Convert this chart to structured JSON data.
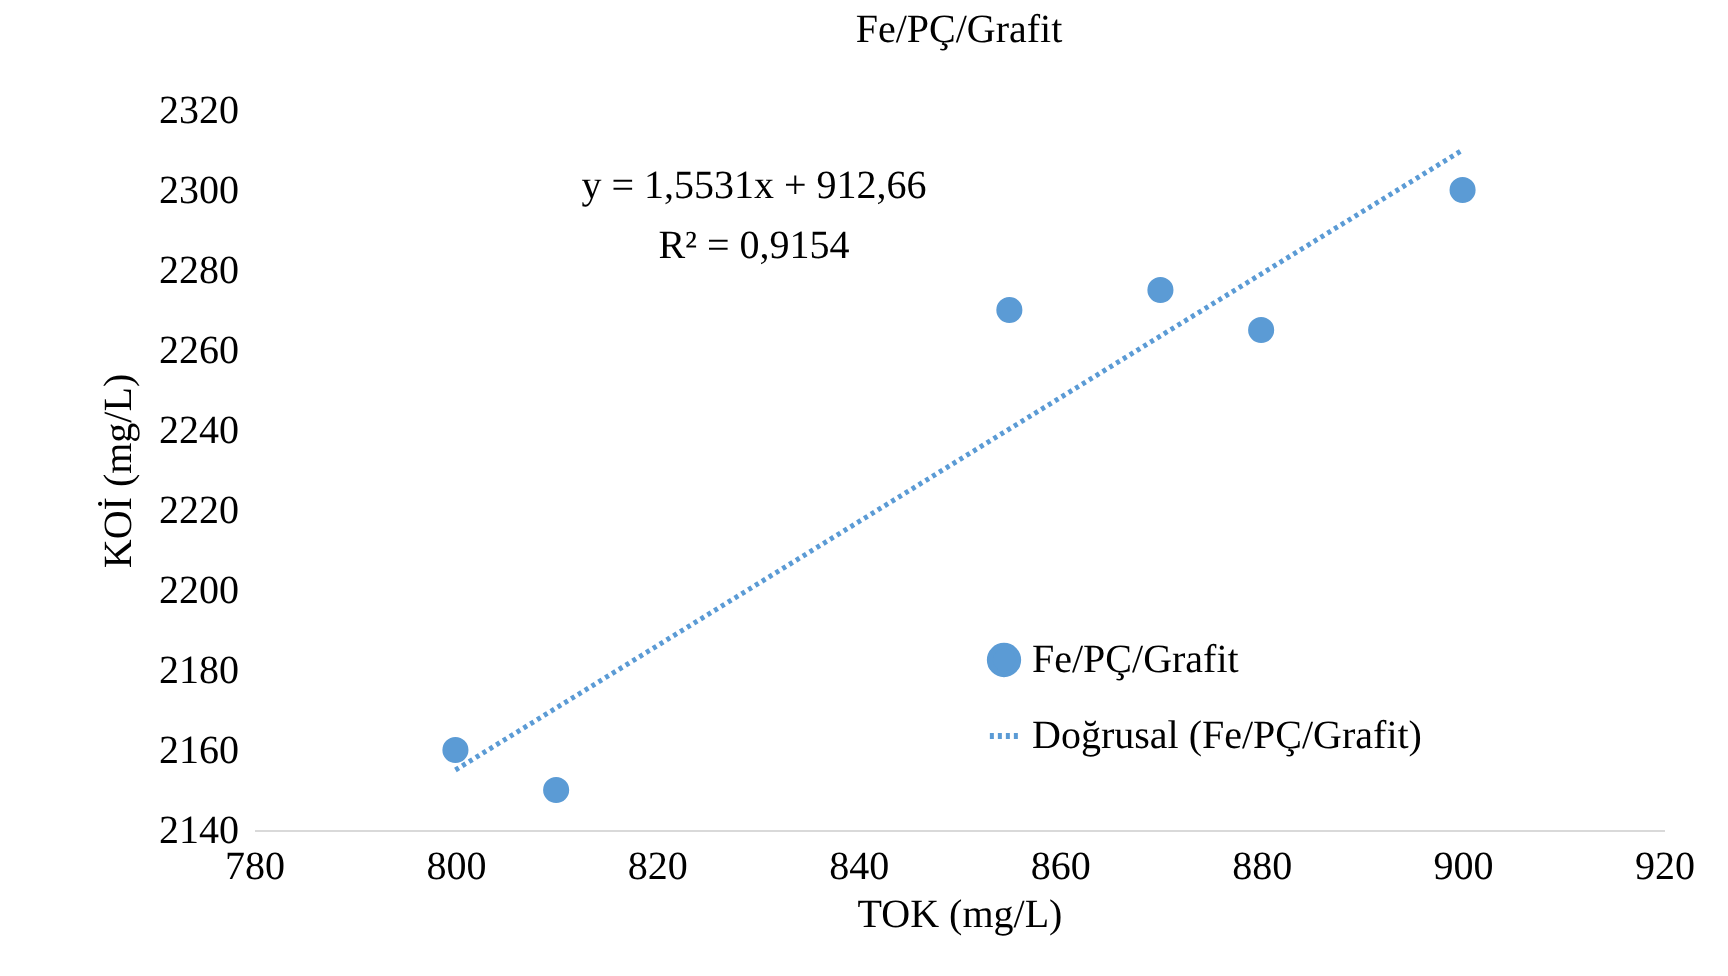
{
  "chart_data": {
    "type": "scatter",
    "title": "Fe/PÇ/Grafit",
    "xlabel": "TOK (mg/L)",
    "ylabel": "KOİ (mg/L)",
    "x": [
      800,
      810,
      855,
      870,
      880,
      900
    ],
    "series": [
      {
        "name": "Fe/PÇ/Grafit",
        "color": "#5b9bd5",
        "values": [
          2160,
          2150,
          2270,
          2275,
          2265,
          2300
        ]
      },
      {
        "name": "Doğrusal (Fe/PÇ/Grafit)",
        "type": "line",
        "color": "#5b9bd5",
        "line_style": "dotted",
        "marker": "none",
        "x": [
          800,
          900
        ],
        "values": [
          2155,
          2310
        ]
      }
    ],
    "annotations": [
      "y = 1,5531x + 912,66",
      "R² = 0,9154"
    ],
    "xlim": [
      780,
      920
    ],
    "xticks": [
      780,
      800,
      820,
      840,
      860,
      880,
      900,
      920
    ],
    "ylim": [
      2140,
      2320
    ],
    "yticks": [
      2140,
      2160,
      2180,
      2200,
      2220,
      2240,
      2260,
      2280,
      2300,
      2320
    ],
    "grid": false,
    "legend": "bottom right",
    "marker": "circle"
  }
}
